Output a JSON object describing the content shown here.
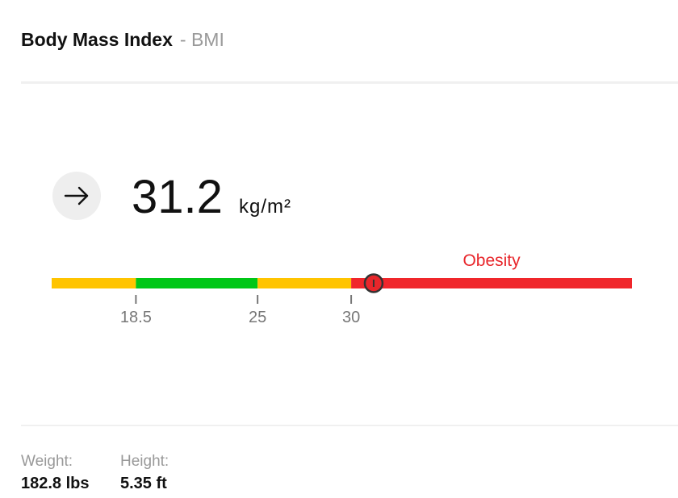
{
  "header": {
    "title": "Body Mass Index",
    "subtitle": "- BMI"
  },
  "bmi": {
    "value": 31.2,
    "unit": "kg/m²",
    "category": "Obesity",
    "category_color": "#e8262b",
    "scale": {
      "xlim": [
        14,
        45
      ],
      "xticks": [
        18.5,
        25,
        30
      ],
      "band_colors": [
        "#ffc400",
        "#00c717",
        "#ffc400",
        "#f0262b"
      ]
    }
  },
  "details": [
    {
      "label": "Weight:",
      "value": "182.8 lbs"
    },
    {
      "label": "Height:",
      "value": "5.35 ft"
    }
  ]
}
